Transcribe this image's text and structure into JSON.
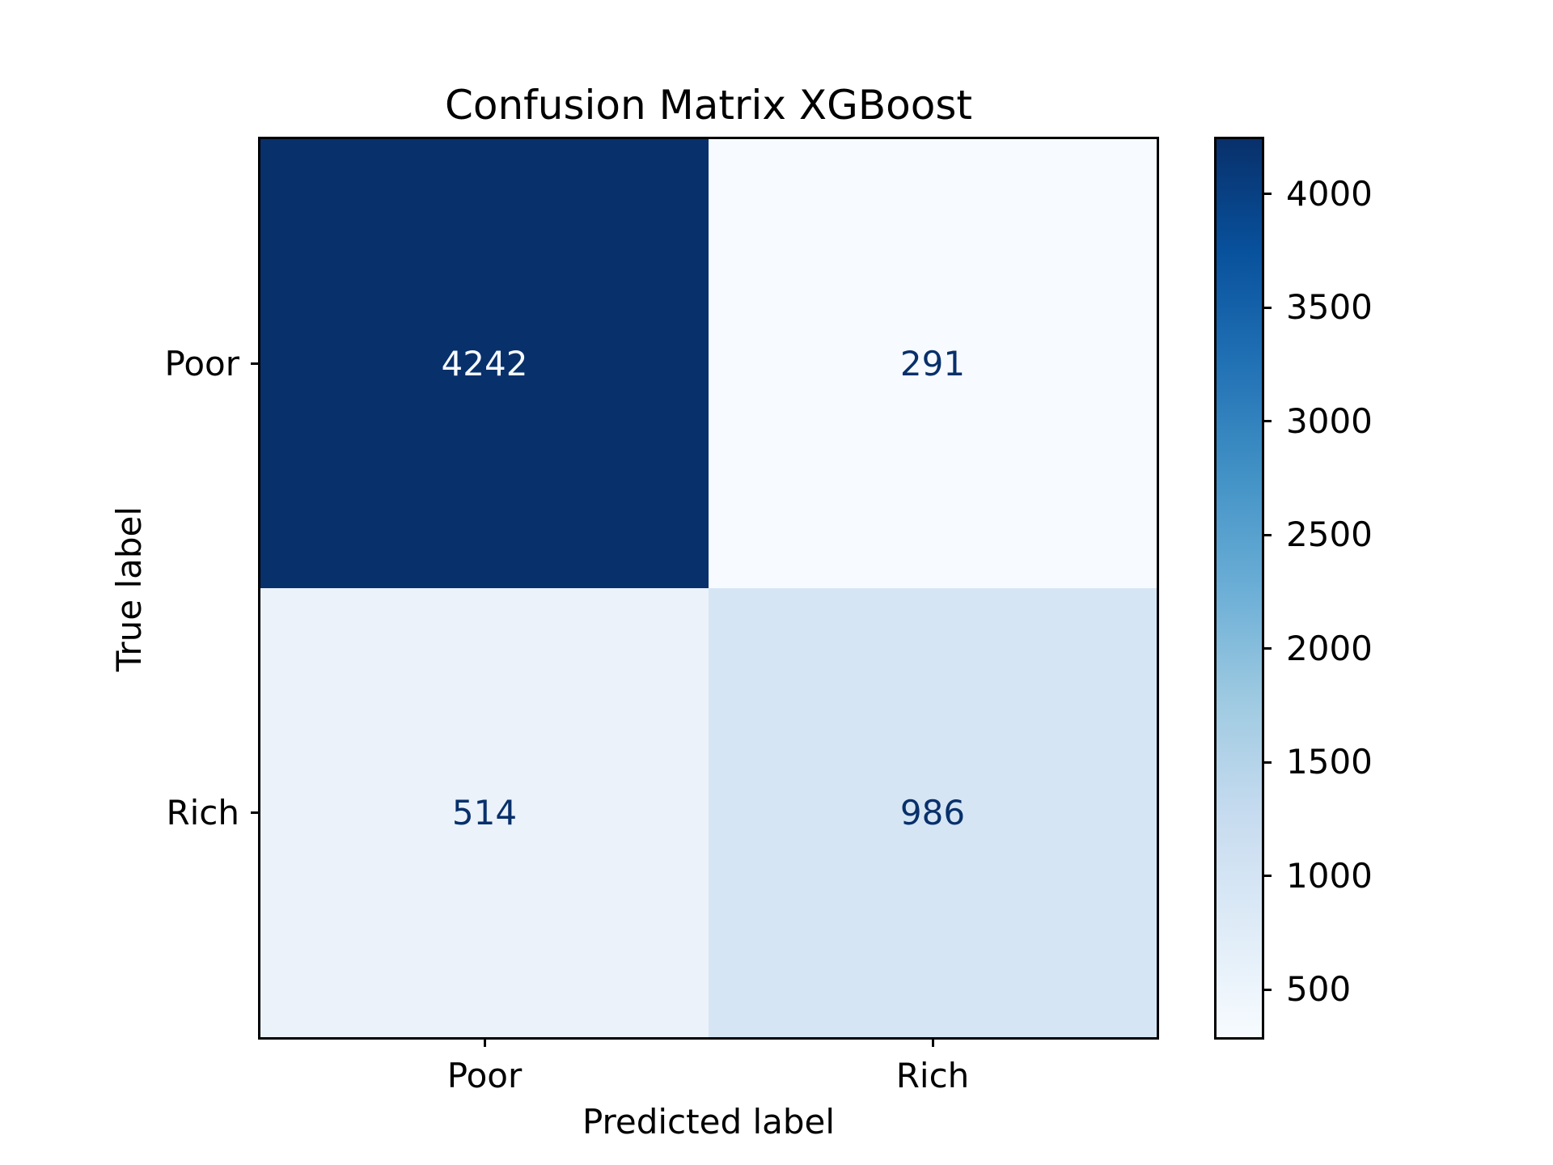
{
  "figure": {
    "title": "Confusion Matrix XGBoost",
    "xlabel": "Predicted label",
    "ylabel": "True label"
  },
  "chart_data": {
    "type": "heatmap",
    "title": "Confusion Matrix XGBoost",
    "xlabel": "Predicted label",
    "ylabel": "True label",
    "x_categories": [
      "Poor",
      "Rich"
    ],
    "y_categories": [
      "Poor",
      "Rich"
    ],
    "matrix": [
      [
        4242,
        291
      ],
      [
        514,
        986
      ]
    ],
    "cells": [
      {
        "row": 0,
        "col": 0,
        "label": "4242",
        "bg": "#08306b",
        "fg": "#f7fbff"
      },
      {
        "row": 0,
        "col": 1,
        "label": "291",
        "bg": "#f7fbff",
        "fg": "#08306b"
      },
      {
        "row": 1,
        "col": 0,
        "label": "514",
        "bg": "#ebf2fa",
        "fg": "#08306b"
      },
      {
        "row": 1,
        "col": 1,
        "label": "986",
        "bg": "#d6e5f4",
        "fg": "#08306b"
      }
    ],
    "colorbar": {
      "colormap": "Blues",
      "vmin": 291,
      "vmax": 4242,
      "ticks": [
        500,
        1000,
        1500,
        2000,
        2500,
        3000,
        3500,
        4000
      ],
      "tick_labels": [
        "500",
        "1000",
        "1500",
        "2000",
        "2500",
        "3000",
        "3500",
        "4000"
      ],
      "stops": [
        {
          "t": 0.0,
          "color": "#f7fbff"
        },
        {
          "t": 0.125,
          "color": "#deebf7"
        },
        {
          "t": 0.25,
          "color": "#c6dbef"
        },
        {
          "t": 0.375,
          "color": "#9ecae1"
        },
        {
          "t": 0.5,
          "color": "#6baed6"
        },
        {
          "t": 0.625,
          "color": "#4292c6"
        },
        {
          "t": 0.75,
          "color": "#2171b5"
        },
        {
          "t": 0.875,
          "color": "#08519c"
        },
        {
          "t": 1.0,
          "color": "#08306b"
        }
      ]
    },
    "colors": {
      "accent_dark": "#08306b",
      "accent_light": "#f7fbff",
      "axis": "#000000",
      "background": "#ffffff"
    },
    "legend_position": "right-colorbar",
    "grid": false
  }
}
